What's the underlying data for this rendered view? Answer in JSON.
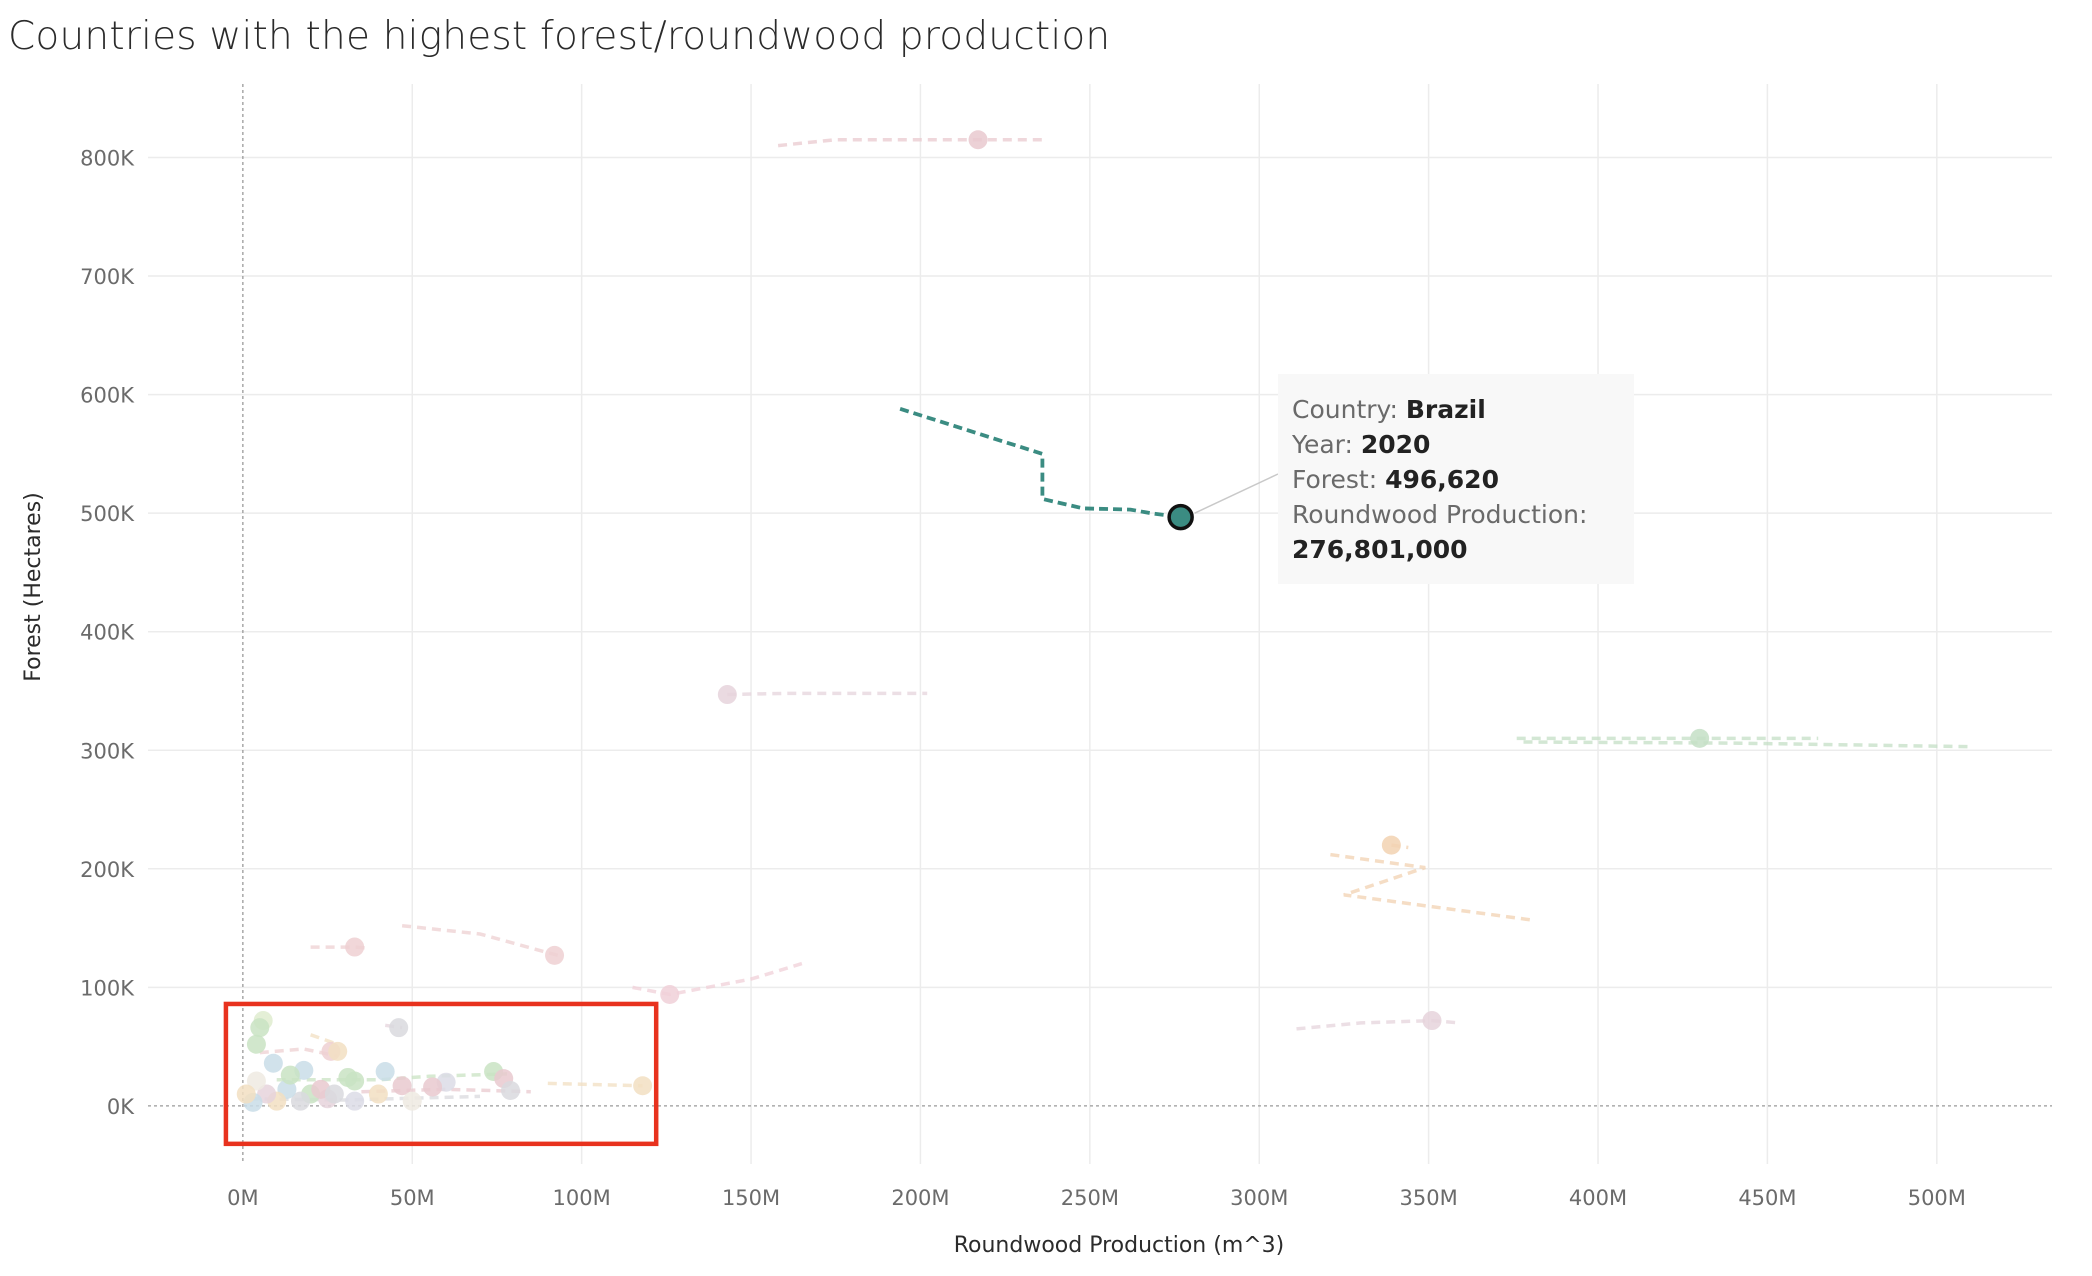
{
  "title": "Countries with the highest forest/roundwood production",
  "chart_data": {
    "type": "scatter",
    "title": "Countries with the highest forest/roundwood production",
    "xlabel": "Roundwood Production (m^3)",
    "ylabel": "Forest (Hectares)",
    "xlim": [
      -28000000,
      534000000
    ],
    "ylim": [
      -49000,
      862000
    ],
    "x_ticks": [
      {
        "value": 0,
        "label": "0M"
      },
      {
        "value": 50000000,
        "label": "50M"
      },
      {
        "value": 100000000,
        "label": "100M"
      },
      {
        "value": 150000000,
        "label": "150M"
      },
      {
        "value": 200000000,
        "label": "200M"
      },
      {
        "value": 250000000,
        "label": "250M"
      },
      {
        "value": 300000000,
        "label": "300M"
      },
      {
        "value": 350000000,
        "label": "350M"
      },
      {
        "value": 400000000,
        "label": "400M"
      },
      {
        "value": 450000000,
        "label": "450M"
      },
      {
        "value": 500000000,
        "label": "500M"
      }
    ],
    "y_ticks": [
      {
        "value": 0,
        "label": "0K"
      },
      {
        "value": 100000,
        "label": "100K"
      },
      {
        "value": 200000,
        "label": "200K"
      },
      {
        "value": 300000,
        "label": "300K"
      },
      {
        "value": 400000,
        "label": "400K"
      },
      {
        "value": 500000,
        "label": "500K"
      },
      {
        "value": 600000,
        "label": "600K"
      },
      {
        "value": 700000,
        "label": "700K"
      },
      {
        "value": 800000,
        "label": "800K"
      }
    ],
    "grid": true,
    "highlighted": {
      "country": "Brazil",
      "year": 2020,
      "forest": 496620,
      "roundwood": 276801000,
      "color": "#3b8c82",
      "trail": [
        [
          194000000,
          588000
        ],
        [
          236000000,
          550000
        ],
        [
          236000000,
          512000
        ],
        [
          248000000,
          504000
        ],
        [
          262000000,
          503000
        ],
        [
          268000000,
          500000
        ],
        [
          276801000,
          496620
        ]
      ]
    },
    "faded_trails": [
      {
        "color": "#e9c9cf",
        "points": [
          [
            158000000,
            810000
          ],
          [
            175000000,
            815000
          ],
          [
            200000000,
            815000
          ],
          [
            217000000,
            815000
          ],
          [
            237000000,
            815000
          ]
        ]
      },
      {
        "color": "#e6d4dc",
        "points": [
          [
            143000000,
            347000
          ],
          [
            160000000,
            348000
          ],
          [
            202000000,
            348000
          ]
        ]
      },
      {
        "color": "#c4dfc6",
        "points": [
          [
            376000000,
            310000
          ],
          [
            430000000,
            310000
          ],
          [
            465000000,
            310000
          ]
        ]
      },
      {
        "color": "#c4dfc6",
        "points": [
          [
            378000000,
            307000
          ],
          [
            440000000,
            306000
          ],
          [
            510000000,
            303000
          ]
        ]
      },
      {
        "color": "#f2d2b2",
        "points": [
          [
            339000000,
            220000
          ],
          [
            344000000,
            218000
          ]
        ]
      },
      {
        "color": "#f2d2b2",
        "points": [
          [
            321000000,
            212000
          ],
          [
            349000000,
            201000
          ],
          [
            325000000,
            178000
          ],
          [
            380000000,
            157000
          ]
        ]
      },
      {
        "color": "#e6d4dc",
        "points": [
          [
            311000000,
            65000
          ],
          [
            330000000,
            70000
          ],
          [
            351000000,
            72000
          ],
          [
            359000000,
            70000
          ]
        ]
      },
      {
        "color": "#eed0d2",
        "points": [
          [
            20000000,
            134000
          ],
          [
            33000000,
            134000
          ],
          [
            37000000,
            133000
          ]
        ]
      },
      {
        "color": "#eed0d2",
        "points": [
          [
            47000000,
            152000
          ],
          [
            70000000,
            145000
          ],
          [
            93000000,
            127000
          ]
        ]
      },
      {
        "color": "#f0d0d8",
        "points": [
          [
            115000000,
            100000
          ],
          [
            126000000,
            94000
          ],
          [
            150000000,
            107000
          ],
          [
            165000000,
            120000
          ]
        ]
      },
      {
        "color": "#f2dfc2",
        "points": [
          [
            90000000,
            19000
          ],
          [
            118000000,
            17000
          ]
        ]
      }
    ],
    "faded_points": [
      {
        "x": 217000000,
        "y": 815000,
        "color": "#e9c9cf"
      },
      {
        "x": 143000000,
        "y": 347000,
        "color": "#e6d4dc"
      },
      {
        "x": 430000000,
        "y": 310000,
        "color": "#c4dfc6"
      },
      {
        "x": 339000000,
        "y": 220000,
        "color": "#f2d2b2"
      },
      {
        "x": 351000000,
        "y": 72000,
        "color": "#e6d4dc"
      },
      {
        "x": 33000000,
        "y": 134000,
        "color": "#eed0d2"
      },
      {
        "x": 92000000,
        "y": 127000,
        "color": "#eed0d2"
      },
      {
        "x": 126000000,
        "y": 94000,
        "color": "#f0d0d8"
      },
      {
        "x": 46000000,
        "y": 66000,
        "color": "#d9d9de"
      },
      {
        "x": 118000000,
        "y": 17000,
        "color": "#f2dfc2"
      },
      {
        "x": 6000000,
        "y": 72000,
        "color": "#dfeccf"
      },
      {
        "x": 5000000,
        "y": 66000,
        "color": "#c9e3c3"
      },
      {
        "x": 4000000,
        "y": 52000,
        "color": "#c9e3c3"
      },
      {
        "x": 9000000,
        "y": 36000,
        "color": "#c9dde8"
      },
      {
        "x": 18000000,
        "y": 30000,
        "color": "#c9dde8"
      },
      {
        "x": 26000000,
        "y": 46000,
        "color": "#eed0d2"
      },
      {
        "x": 28000000,
        "y": 46000,
        "color": "#f2dfc2"
      },
      {
        "x": 31000000,
        "y": 24000,
        "color": "#c9e3c3"
      },
      {
        "x": 33000000,
        "y": 21000,
        "color": "#c9e3c3"
      },
      {
        "x": 42000000,
        "y": 29000,
        "color": "#c9dde8"
      },
      {
        "x": 47000000,
        "y": 17000,
        "color": "#e9c9cf"
      },
      {
        "x": 60000000,
        "y": 20000,
        "color": "#dcdce6"
      },
      {
        "x": 56000000,
        "y": 16000,
        "color": "#e9c9cf"
      },
      {
        "x": 74000000,
        "y": 29000,
        "color": "#c9e3c3"
      },
      {
        "x": 77000000,
        "y": 23000,
        "color": "#e9c9cf"
      },
      {
        "x": 79000000,
        "y": 13000,
        "color": "#d9d9de"
      },
      {
        "x": 50000000,
        "y": 4000,
        "color": "#eeeae2"
      },
      {
        "x": 40000000,
        "y": 10000,
        "color": "#f2dfc2"
      },
      {
        "x": 33000000,
        "y": 4000,
        "color": "#dcdce6"
      },
      {
        "x": 25000000,
        "y": 6000,
        "color": "#e6d4dc"
      },
      {
        "x": 20000000,
        "y": 10000,
        "color": "#c9e3c3"
      },
      {
        "x": 17000000,
        "y": 4000,
        "color": "#d9d9de"
      },
      {
        "x": 13000000,
        "y": 14000,
        "color": "#c9dde8"
      },
      {
        "x": 10000000,
        "y": 4000,
        "color": "#f2dfc2"
      },
      {
        "x": 7000000,
        "y": 10000,
        "color": "#e6d4dc"
      },
      {
        "x": 4000000,
        "y": 21000,
        "color": "#eeeae2"
      },
      {
        "x": 3000000,
        "y": 3000,
        "color": "#c9dde8"
      },
      {
        "x": 1000000,
        "y": 10000,
        "color": "#f2dfc2"
      },
      {
        "x": 14000000,
        "y": 26000,
        "color": "#c9e3c3"
      },
      {
        "x": 23000000,
        "y": 14000,
        "color": "#e9c9cf"
      },
      {
        "x": 27000000,
        "y": 10000,
        "color": "#d9d9de"
      }
    ],
    "faded_segments": [
      {
        "color": "#eed0d2",
        "points": [
          [
            5000000,
            45000
          ],
          [
            18000000,
            48000
          ],
          [
            28000000,
            42000
          ]
        ]
      },
      {
        "color": "#c9e3c3",
        "points": [
          [
            10000000,
            22000
          ],
          [
            40000000,
            22000
          ],
          [
            55000000,
            25000
          ],
          [
            78000000,
            27000
          ]
        ]
      },
      {
        "color": "#e9c9cf",
        "points": [
          [
            35000000,
            12000
          ],
          [
            60000000,
            14000
          ],
          [
            85000000,
            12000
          ]
        ]
      },
      {
        "color": "#d9d9de",
        "points": [
          [
            2000000,
            6000
          ],
          [
            30000000,
            5000
          ],
          [
            70000000,
            8000
          ]
        ]
      },
      {
        "color": "#f2dfc2",
        "points": [
          [
            20000000,
            60000
          ],
          [
            28000000,
            52000
          ]
        ]
      },
      {
        "color": "#e6d4dc",
        "points": [
          [
            42000000,
            68000
          ],
          [
            47000000,
            66000
          ]
        ]
      }
    ]
  },
  "tooltip": {
    "country_label": "Country:",
    "country_value": "Brazil",
    "year_label": "Year:",
    "year_value": "2020",
    "forest_label": "Forest:",
    "forest_value": "496,620",
    "roundwood_label": "Roundwood Production:",
    "roundwood_value": "276,801,000"
  },
  "annotation": {
    "box_color": "#e8321e",
    "x_range": [
      -5000000,
      122000000
    ],
    "y_range": [
      -32000,
      86000
    ]
  }
}
